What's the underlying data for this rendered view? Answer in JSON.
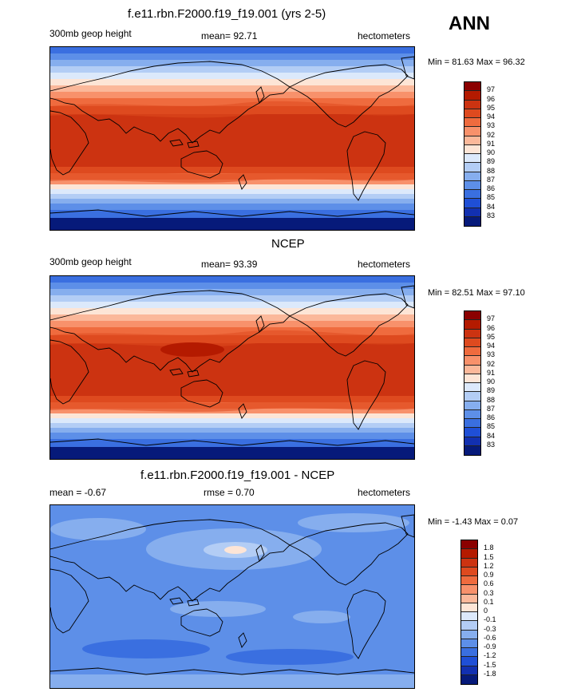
{
  "season": "ANN",
  "panels": [
    {
      "title": "f.e11.rbn.F2000.f19_f19.001 (yrs 2-5)",
      "left_label": "300mb geop height",
      "center_label": "mean=  92.71",
      "right_label": "hectometers",
      "minmax": "Min =  81.63 Max =  96.32",
      "ticks": [
        "97",
        "96",
        "95",
        "94",
        "93",
        "92",
        "91",
        "90",
        "89",
        "88",
        "87",
        "86",
        "85",
        "84",
        "83"
      ]
    },
    {
      "title": "NCEP",
      "left_label": "300mb geop height",
      "center_label": "mean=  93.39",
      "right_label": "hectometers",
      "minmax": "Min =  82.51 Max =  97.10",
      "ticks": [
        "97",
        "96",
        "95",
        "94",
        "93",
        "92",
        "91",
        "90",
        "89",
        "88",
        "87",
        "86",
        "85",
        "84",
        "83"
      ]
    },
    {
      "title": "f.e11.rbn.F2000.f19_f19.001 - NCEP",
      "left_label": "mean =  -0.67",
      "center_label": "rmse =  0.70",
      "right_label": "hectometers",
      "minmax": "Min =  -1.43 Max =   0.07",
      "ticks": [
        "1.8",
        "1.5",
        "1.2",
        "0.9",
        "0.6",
        "0.3",
        "0.1",
        "0",
        "-0.1",
        "-0.3",
        "-0.6",
        "-0.9",
        "-1.2",
        "-1.5",
        "-1.8"
      ]
    }
  ],
  "colors": {
    "scale": [
      "#8b0000",
      "#b41a00",
      "#cc3311",
      "#de4a1f",
      "#ef6b3e",
      "#f8916b",
      "#fbb89a",
      "#fde5d6",
      "#dce9fb",
      "#b3cdf5",
      "#86aeee",
      "#5d8fe8",
      "#3a6fe0",
      "#1f4fd6",
      "#1230b0",
      "#061a7a"
    ],
    "continent_line": "#000000"
  }
}
